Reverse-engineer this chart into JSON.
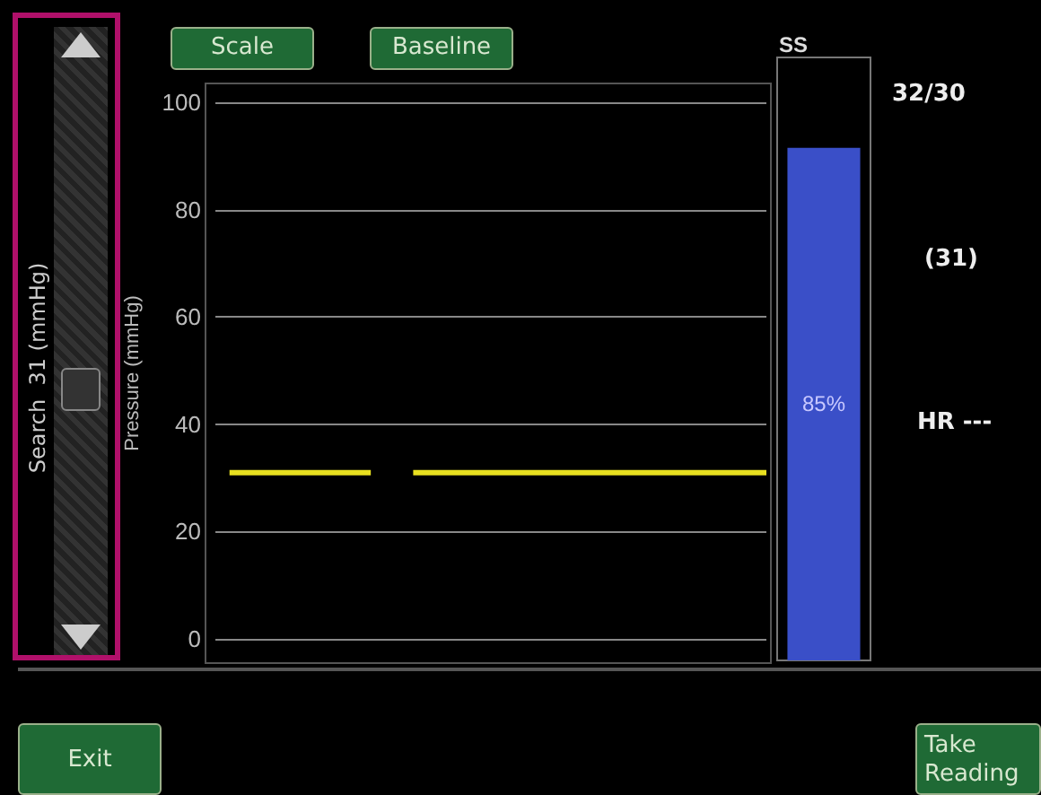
{
  "chart_data": [
    {
      "type": "line",
      "ylabel": "Pressure (mmHg)",
      "categories": [
        null,
        null,
        null,
        null,
        null,
        null,
        null,
        null,
        null,
        null,
        null,
        null,
        null,
        null,
        null,
        null,
        null,
        null,
        null,
        null,
        null,
        null,
        null,
        null,
        null,
        null,
        null,
        null,
        null,
        null,
        null,
        null,
        null,
        null,
        null,
        null,
        null,
        null,
        null,
        null
      ],
      "series": [
        {
          "color": "#e8e020",
          "values": [
            null,
            31,
            31,
            31,
            31,
            31,
            31,
            31,
            31,
            31,
            31,
            31,
            null,
            null,
            31,
            31,
            31,
            31,
            31,
            31,
            31,
            31,
            31,
            31,
            31,
            31,
            31,
            31,
            31,
            31,
            31,
            31,
            31,
            31,
            31,
            31,
            31,
            31,
            31,
            31
          ]
        }
      ],
      "ylim": [
        -4,
        103
      ],
      "yticks": [
        0,
        20,
        40,
        60,
        80,
        100
      ],
      "grid": "y",
      "line_style": "solid"
    },
    {
      "type": "bar",
      "title": "SS",
      "categories": [
        null
      ],
      "values": [
        85
      ],
      "value_labels": [
        "85%"
      ],
      "color": "#3a4fc8",
      "ylim": [
        0,
        100
      ],
      "tick_labels": false
    },
    {
      "type": "other",
      "annotations": [
        "32/30",
        "(31)",
        "HR ---",
        "Scale",
        "Baseline",
        "Search  31 (mmHg)",
        "Exit",
        "Take Reading"
      ]
    }
  ]
}
